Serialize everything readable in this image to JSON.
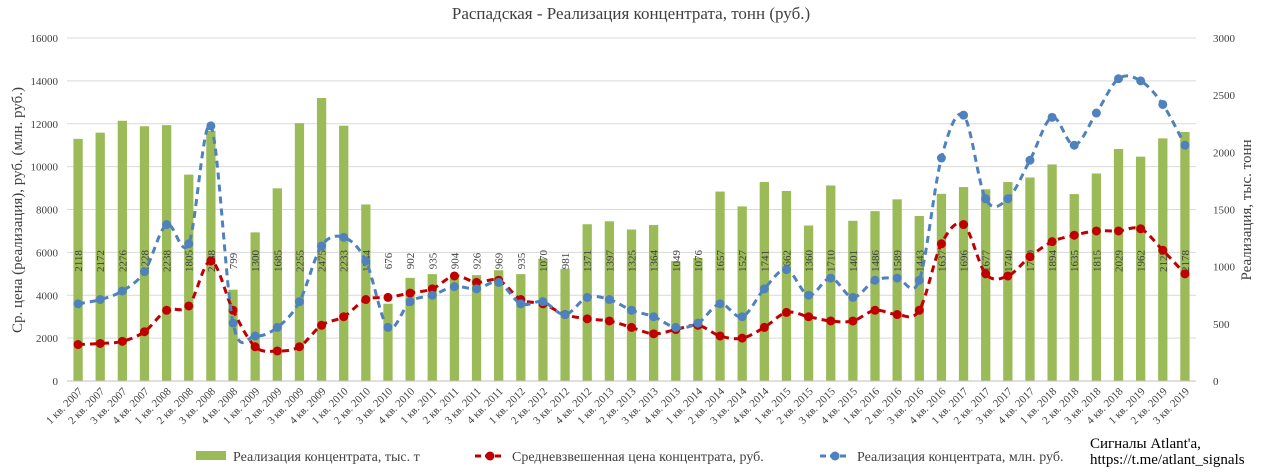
{
  "chart_data": {
    "type": "bar+line",
    "title": "Распадская - Реализация концентрата, тонн (руб.)",
    "ylabel_left": "Ср. цена (реализация), руб. (млн. руб.)",
    "ylabel_right": "Реализация, тыс. тонн",
    "ylim_left": [
      0,
      16000
    ],
    "yticks_left": [
      "0",
      "2000",
      "4000",
      "6000",
      "8000",
      "10000",
      "12000",
      "14000",
      "16000"
    ],
    "ylim_right": [
      0,
      3000
    ],
    "yticks_right": [
      "0",
      "500",
      "1000",
      "1500",
      "2000",
      "2500",
      "3000"
    ],
    "grid": true,
    "legend_position": "bottom",
    "categories": [
      "1 кв. 2007",
      "2 кв. 2007",
      "3 кв. 2007",
      "4 кв. 2007",
      "1 кв. 2008",
      "2 кв. 2008",
      "3 кв. 2008",
      "4 кв. 2008",
      "1 кв. 2009",
      "2 кв. 2009",
      "3 кв. 2009",
      "4 кв. 2009",
      "1 кв. 2010",
      "2 кв. 2010",
      "3 кв. 2010",
      "4 кв. 2010",
      "1 кв. 2011",
      "2 кв. 2011",
      "3 кв. 2011",
      "4 кв. 2011",
      "1 кв. 2012",
      "2 кв. 2012",
      "3 кв. 2012",
      "4 кв. 2012",
      "1 кв. 2013",
      "2 кв. 2013",
      "3 кв. 2013",
      "4 кв. 2013",
      "1 кв. 2014",
      "2 кв. 2014",
      "3 кв. 2014",
      "4 кв. 2014",
      "1 кв. 2015",
      "2 кв. 2015",
      "3 кв. 2015",
      "4 кв. 2015",
      "1 кв. 2016",
      "2 кв. 2016",
      "3 кв. 2016",
      "4 кв. 2016",
      "1 кв. 2017",
      "2 кв. 2017",
      "3 кв. 2017",
      "4 кв. 2017",
      "1 кв. 2018",
      "2 кв. 2018",
      "3 кв. 2018",
      "4 кв. 2018",
      "1 кв. 2019",
      "2 кв. 2019",
      "3 кв. 2019"
    ],
    "series": [
      {
        "name": "Реализация концентрата, тыс. т",
        "kind": "bar",
        "axis": "right",
        "color": "#9BBB59",
        "values": [
          2118,
          2172,
          2276,
          2228,
          2238,
          1805,
          2188,
          799,
          1300,
          1685,
          2255,
          2475,
          2233,
          1544,
          676,
          902,
          935,
          904,
          926,
          969,
          935,
          1070,
          981,
          1371,
          1397,
          1325,
          1364,
          1049,
          1076,
          1657,
          1527,
          1741,
          1662,
          1360,
          1710,
          1401,
          1486,
          1589,
          1443,
          1637,
          1696,
          1677,
          1740,
          1780,
          1894,
          1635,
          1815,
          2029,
          1962,
          2122,
          2178
        ],
        "labels": [
          "2118",
          "2172",
          "2276",
          "2228",
          "2238",
          "1805",
          "2188",
          "799",
          "1300",
          "1685",
          "2255",
          "2475",
          "2233",
          "1544",
          "676",
          "902",
          "935",
          "904",
          "926",
          "969",
          "935",
          "1070",
          "981",
          "1371",
          "1397",
          "1325",
          "1364",
          "1049",
          "1076",
          "1657",
          "1527",
          "1741",
          "1662",
          "1360",
          "1710",
          "1401",
          "1486",
          "1589",
          "1443",
          "1637",
          "1696",
          "1677",
          "1740",
          "1780",
          "1894",
          "1635",
          "1815",
          "2029",
          "1962",
          "2122",
          "2178"
        ]
      },
      {
        "name": "Средневзвешенная цена концентрата, руб.",
        "kind": "line",
        "axis": "left",
        "color": "#C00000",
        "dash": "dashed",
        "values": [
          1700,
          1750,
          1850,
          2300,
          3300,
          3500,
          5600,
          3300,
          1600,
          1400,
          1600,
          2600,
          3000,
          3800,
          3900,
          4100,
          4300,
          4900,
          4600,
          4700,
          3800,
          3600,
          3100,
          2900,
          2800,
          2500,
          2200,
          2400,
          2600,
          2100,
          2000,
          2500,
          3200,
          3000,
          2800,
          2800,
          3300,
          3100,
          3300,
          6400,
          7300,
          5000,
          4900,
          5800,
          6500,
          6800,
          7000,
          7000,
          7100,
          6100,
          5000
        ]
      },
      {
        "name": "Реализация концентрата, млн. руб.",
        "kind": "line",
        "axis": "left",
        "color": "#4F81BD",
        "dash": "dashed",
        "values": [
          3600,
          3800,
          4200,
          5100,
          7300,
          6400,
          11900,
          2700,
          2100,
          2500,
          3700,
          6300,
          6700,
          5600,
          2500,
          3700,
          4000,
          4400,
          4300,
          4600,
          3600,
          3700,
          3100,
          3900,
          3800,
          3300,
          3000,
          2500,
          2700,
          3600,
          3000,
          4300,
          5200,
          4000,
          4800,
          3900,
          4700,
          4800,
          4700,
          10400,
          12400,
          8500,
          8500,
          10300,
          12300,
          11000,
          12500,
          14100,
          14000,
          12900,
          11000
        ]
      }
    ]
  },
  "credit": {
    "line1": "Сигналы Atlant'a,",
    "line2": "https://t.me/atlant_signals"
  }
}
